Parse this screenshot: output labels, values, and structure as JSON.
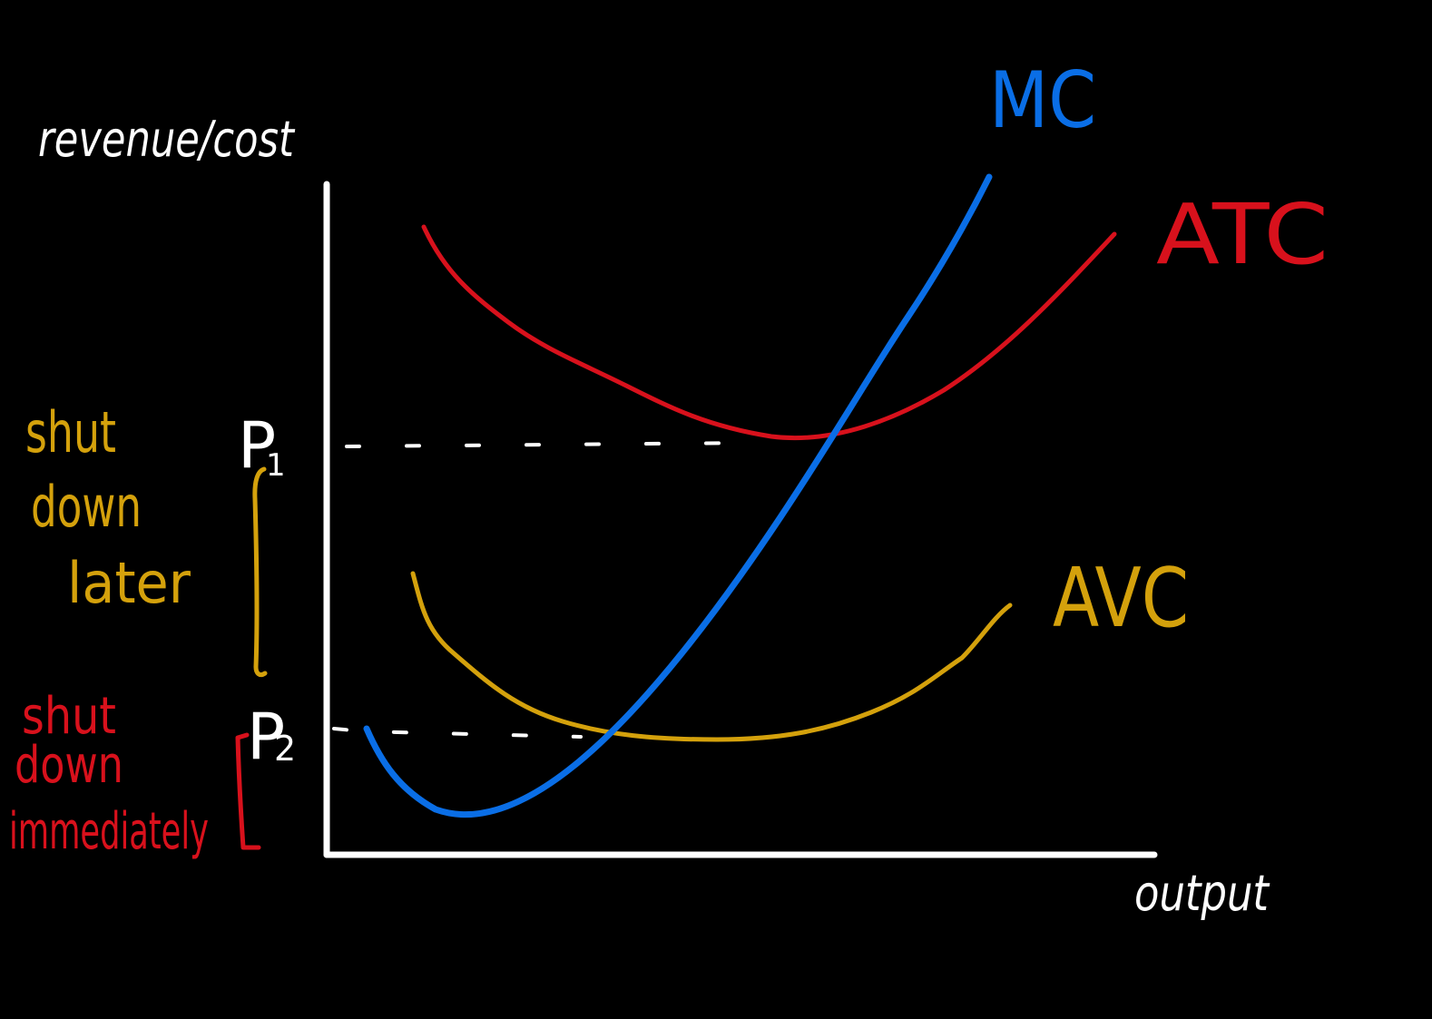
{
  "diagram": {
    "y_axis_label": "revenue/cost",
    "x_axis_label": "output",
    "curves": {
      "mc": {
        "label": "MC",
        "color": "#0a6ee6"
      },
      "atc": {
        "label": "ATC",
        "color": "#d8111c"
      },
      "avc": {
        "label": "AVC",
        "color": "#d4a10c"
      }
    },
    "prices": {
      "p1": {
        "label": "P",
        "subscript": "1"
      },
      "p2": {
        "label": "P",
        "subscript": "2"
      }
    },
    "regions": {
      "shut_down_later": {
        "lines": [
          "shut",
          "down",
          "later"
        ],
        "color": "#d4a10c"
      },
      "shut_down_immediately": {
        "lines": [
          "shut",
          "down",
          "immediately"
        ],
        "color": "#d8111c"
      }
    },
    "axis_color": "#ffffff",
    "background": "#000000"
  }
}
